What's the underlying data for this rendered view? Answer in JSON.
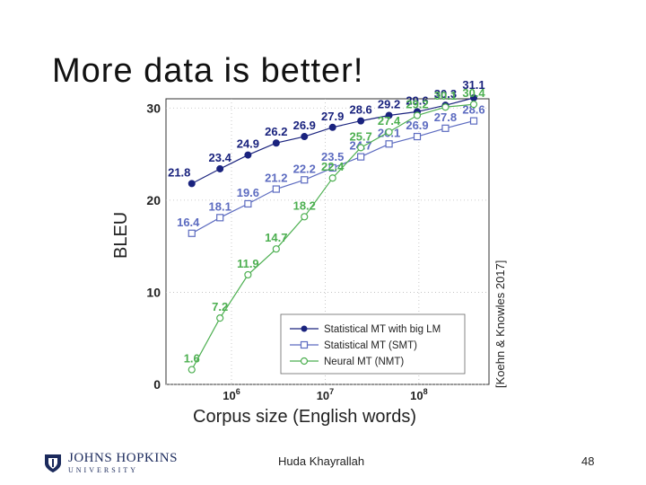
{
  "slide": {
    "title": "More data is better!",
    "author": "Huda Khayrallah",
    "page_number": "48",
    "citation": "[Koehn & Knowles 2017]",
    "logo_line1": "JOHNS HOPKINS",
    "logo_line2": "UNIVERSITY"
  },
  "colors": {
    "smt_big_lm": "#1a237e",
    "smt": "#5c6bc0",
    "nmt": "#4caf50"
  },
  "chart_data": {
    "type": "line",
    "title": "",
    "xlabel": "Corpus size (English words)",
    "ylabel": "BLEU",
    "x_scale": "log",
    "x_ticks": [
      "10^6",
      "10^7",
      "10^8"
    ],
    "y_ticks": [
      0,
      10,
      20,
      30
    ],
    "ylim": [
      0,
      31
    ],
    "legend_position": "lower-right",
    "x": [
      377000,
      754000,
      1500000,
      3000000,
      6000000,
      12000000,
      24000000,
      48000000,
      96000000,
      192000000,
      385000000
    ],
    "series": [
      {
        "name": "Statistical MT with big LM",
        "marker": "filled-circle",
        "values": [
          21.8,
          23.4,
          24.9,
          26.2,
          26.9,
          27.9,
          28.6,
          29.2,
          29.6,
          30.3,
          31.1
        ]
      },
      {
        "name": "Statistical MT (SMT)",
        "marker": "square",
        "values": [
          16.4,
          18.1,
          19.6,
          21.2,
          22.2,
          23.5,
          24.7,
          26.1,
          26.9,
          27.8,
          28.6
        ]
      },
      {
        "name": "Neural MT (NMT)",
        "marker": "open-circle",
        "values": [
          1.6,
          7.2,
          11.9,
          14.7,
          18.2,
          22.4,
          25.7,
          27.4,
          29.2,
          30.1,
          30.4
        ]
      }
    ],
    "point_labels": {
      "Statistical MT with big LM": [
        "21.8",
        "23.4",
        "24.9",
        "26.2",
        "26.9",
        "27.9",
        "28.6",
        "29.2",
        "29.6",
        "30.3",
        "31.1"
      ],
      "Statistical MT (SMT)": [
        "16.4",
        "18.1",
        "19.6",
        "21.2",
        "22.2",
        "23.5",
        "24.7",
        "26.1",
        "26.9",
        "27.8",
        "28.6"
      ],
      "Neural MT (NMT)": [
        "1.6",
        "7.2",
        "11.9",
        "14.7",
        "18.2",
        "22.4",
        "25.7",
        "27.4",
        "29.2",
        "30.1",
        "30.4"
      ]
    }
  }
}
